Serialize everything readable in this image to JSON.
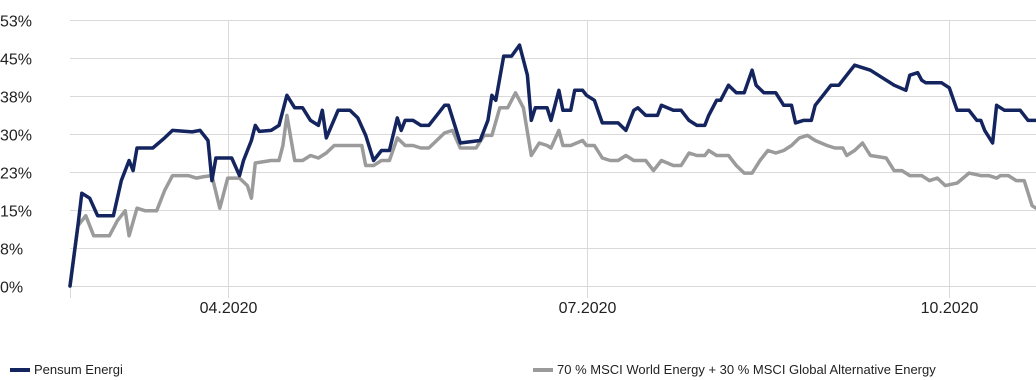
{
  "chart_data": {
    "type": "line",
    "title": "",
    "xlabel": "",
    "ylabel": "",
    "ylim": [
      0,
      53
    ],
    "y_ticks": [
      {
        "value": 0,
        "label": "0%"
      },
      {
        "value": 7.57,
        "label": "8%"
      },
      {
        "value": 15.14,
        "label": "15%"
      },
      {
        "value": 22.71,
        "label": "23%"
      },
      {
        "value": 30.28,
        "label": "30%"
      },
      {
        "value": 37.85,
        "label": "38%"
      },
      {
        "value": 45.42,
        "label": "45%"
      },
      {
        "value": 53.0,
        "label": "53%"
      }
    ],
    "x_start": "2020-02-21",
    "x_end": "2020-10-23",
    "x_ticks": [
      {
        "value": "2020-04-01",
        "label": "04.2020"
      },
      {
        "value": "2020-07-01",
        "label": "07.2020"
      },
      {
        "value": "2020-10-01",
        "label": "10.2020"
      }
    ],
    "grid": true,
    "legend_position": "bottom",
    "series": [
      {
        "name": "Pensum Energi",
        "color": "#14245f",
        "points": [
          [
            "2020-02-21",
            0
          ],
          [
            "2020-02-23",
            12
          ],
          [
            "2020-02-24",
            18.5
          ],
          [
            "2020-02-26",
            17.5
          ],
          [
            "2020-02-28",
            14
          ],
          [
            "2020-03-03",
            14
          ],
          [
            "2020-03-05",
            21
          ],
          [
            "2020-03-07",
            25
          ],
          [
            "2020-03-08",
            23
          ],
          [
            "2020-03-09",
            27.5
          ],
          [
            "2020-03-13",
            27.5
          ],
          [
            "2020-03-16",
            29.5
          ],
          [
            "2020-03-18",
            31
          ],
          [
            "2020-03-23",
            30.7
          ],
          [
            "2020-03-25",
            31
          ],
          [
            "2020-03-27",
            29
          ],
          [
            "2020-03-28",
            21
          ],
          [
            "2020-03-29",
            25.5
          ],
          [
            "2020-04-02",
            25.5
          ],
          [
            "2020-04-04",
            22
          ],
          [
            "2020-04-05",
            25
          ],
          [
            "2020-04-07",
            29
          ],
          [
            "2020-04-08",
            32
          ],
          [
            "2020-04-09",
            30.8
          ],
          [
            "2020-04-12",
            31
          ],
          [
            "2020-04-14",
            32
          ],
          [
            "2020-04-16",
            38
          ],
          [
            "2020-04-18",
            35.5
          ],
          [
            "2020-04-20",
            35.5
          ],
          [
            "2020-04-22",
            33
          ],
          [
            "2020-04-24",
            32
          ],
          [
            "2020-04-25",
            35
          ],
          [
            "2020-04-26",
            29.5
          ],
          [
            "2020-04-29",
            35
          ],
          [
            "2020-05-02",
            35
          ],
          [
            "2020-05-04",
            33.5
          ],
          [
            "2020-05-06",
            30
          ],
          [
            "2020-05-08",
            25
          ],
          [
            "2020-05-10",
            27
          ],
          [
            "2020-05-12",
            27
          ],
          [
            "2020-05-14",
            33.5
          ],
          [
            "2020-05-15",
            31
          ],
          [
            "2020-05-16",
            33
          ],
          [
            "2020-05-18",
            33
          ],
          [
            "2020-05-20",
            32
          ],
          [
            "2020-05-22",
            32
          ],
          [
            "2020-05-24",
            34
          ],
          [
            "2020-05-26",
            36
          ],
          [
            "2020-05-27",
            36
          ],
          [
            "2020-05-30",
            28.5
          ],
          [
            "2020-06-04",
            29
          ],
          [
            "2020-06-06",
            33
          ],
          [
            "2020-06-07",
            38
          ],
          [
            "2020-06-08",
            37
          ],
          [
            "2020-06-10",
            45.8
          ],
          [
            "2020-06-12",
            45.8
          ],
          [
            "2020-06-14",
            48
          ],
          [
            "2020-06-16",
            42
          ],
          [
            "2020-06-17",
            33
          ],
          [
            "2020-06-18",
            35.5
          ],
          [
            "2020-06-20",
            35.5
          ],
          [
            "2020-06-21",
            35.5
          ],
          [
            "2020-06-22",
            33
          ],
          [
            "2020-06-24",
            39
          ],
          [
            "2020-06-25",
            35
          ],
          [
            "2020-06-27",
            35
          ],
          [
            "2020-06-28",
            39
          ],
          [
            "2020-06-30",
            39
          ],
          [
            "2020-07-01",
            38
          ],
          [
            "2020-07-03",
            37
          ],
          [
            "2020-07-05",
            32.5
          ],
          [
            "2020-07-09",
            32.5
          ],
          [
            "2020-07-11",
            31
          ],
          [
            "2020-07-13",
            35
          ],
          [
            "2020-07-14",
            35.5
          ],
          [
            "2020-07-16",
            34
          ],
          [
            "2020-07-19",
            34
          ],
          [
            "2020-07-20",
            36
          ],
          [
            "2020-07-23",
            35
          ],
          [
            "2020-07-25",
            35
          ],
          [
            "2020-07-27",
            33
          ],
          [
            "2020-07-29",
            32
          ],
          [
            "2020-07-31",
            32
          ],
          [
            "2020-08-01",
            34
          ],
          [
            "2020-08-03",
            37
          ],
          [
            "2020-08-04",
            37
          ],
          [
            "2020-08-06",
            40
          ],
          [
            "2020-08-08",
            38.5
          ],
          [
            "2020-08-10",
            38.5
          ],
          [
            "2020-08-12",
            43
          ],
          [
            "2020-08-13",
            40
          ],
          [
            "2020-08-15",
            38.5
          ],
          [
            "2020-08-18",
            38.5
          ],
          [
            "2020-08-20",
            36
          ],
          [
            "2020-08-22",
            36
          ],
          [
            "2020-08-23",
            32.5
          ],
          [
            "2020-08-25",
            33
          ],
          [
            "2020-08-27",
            33
          ],
          [
            "2020-08-28",
            36
          ],
          [
            "2020-08-30",
            38
          ],
          [
            "2020-09-01",
            40
          ],
          [
            "2020-09-03",
            40
          ],
          [
            "2020-09-05",
            42
          ],
          [
            "2020-09-07",
            44
          ],
          [
            "2020-09-09",
            43.5
          ],
          [
            "2020-09-11",
            43
          ],
          [
            "2020-09-13",
            42
          ],
          [
            "2020-09-15",
            41
          ],
          [
            "2020-09-17",
            40
          ],
          [
            "2020-09-20",
            39
          ],
          [
            "2020-09-21",
            42
          ],
          [
            "2020-09-23",
            42.5
          ],
          [
            "2020-09-24",
            41
          ],
          [
            "2020-09-25",
            40.5
          ],
          [
            "2020-09-29",
            40.5
          ],
          [
            "2020-10-01",
            39.5
          ],
          [
            "2020-10-03",
            35
          ],
          [
            "2020-10-06",
            35
          ],
          [
            "2020-10-08",
            33
          ],
          [
            "2020-10-09",
            33
          ],
          [
            "2020-10-10",
            31
          ],
          [
            "2020-10-12",
            28.5
          ],
          [
            "2020-10-13",
            36
          ],
          [
            "2020-10-15",
            35
          ],
          [
            "2020-10-17",
            35
          ],
          [
            "2020-10-19",
            35
          ],
          [
            "2020-10-21",
            33
          ],
          [
            "2020-10-23",
            33
          ]
        ]
      },
      {
        "name": "70 % MSCI World Energy + 30 % MSCI Global Alternative Energy",
        "color": "#9b9b9b",
        "points": [
          [
            "2020-02-21",
            0
          ],
          [
            "2020-02-23",
            12
          ],
          [
            "2020-02-25",
            14
          ],
          [
            "2020-02-27",
            10
          ],
          [
            "2020-03-02",
            10
          ],
          [
            "2020-03-04",
            13
          ],
          [
            "2020-03-06",
            15
          ],
          [
            "2020-03-07",
            10
          ],
          [
            "2020-03-09",
            15.5
          ],
          [
            "2020-03-11",
            15
          ],
          [
            "2020-03-14",
            15
          ],
          [
            "2020-03-16",
            19
          ],
          [
            "2020-03-18",
            22
          ],
          [
            "2020-03-22",
            22
          ],
          [
            "2020-03-24",
            21.5
          ],
          [
            "2020-03-26",
            21.8
          ],
          [
            "2020-03-28",
            22
          ],
          [
            "2020-03-30",
            15.5
          ],
          [
            "2020-04-01",
            21.5
          ],
          [
            "2020-04-04",
            21.5
          ],
          [
            "2020-04-06",
            20
          ],
          [
            "2020-04-07",
            17.5
          ],
          [
            "2020-04-08",
            24.5
          ],
          [
            "2020-04-12",
            25
          ],
          [
            "2020-04-14",
            25
          ],
          [
            "2020-04-15",
            28
          ],
          [
            "2020-04-16",
            34
          ],
          [
            "2020-04-18",
            25
          ],
          [
            "2020-04-20",
            25
          ],
          [
            "2020-04-22",
            26
          ],
          [
            "2020-04-24",
            25.5
          ],
          [
            "2020-04-26",
            26.5
          ],
          [
            "2020-04-28",
            28
          ],
          [
            "2020-05-01",
            28
          ],
          [
            "2020-05-03",
            28
          ],
          [
            "2020-05-05",
            28
          ],
          [
            "2020-05-06",
            24
          ],
          [
            "2020-05-08",
            24
          ],
          [
            "2020-05-10",
            25
          ],
          [
            "2020-05-12",
            25
          ],
          [
            "2020-05-14",
            29.5
          ],
          [
            "2020-05-16",
            28
          ],
          [
            "2020-05-18",
            28
          ],
          [
            "2020-05-20",
            27.5
          ],
          [
            "2020-05-22",
            27.5
          ],
          [
            "2020-05-24",
            29
          ],
          [
            "2020-05-26",
            30.5
          ],
          [
            "2020-05-28",
            31
          ],
          [
            "2020-05-30",
            27.5
          ],
          [
            "2020-06-03",
            27.5
          ],
          [
            "2020-06-05",
            30
          ],
          [
            "2020-06-07",
            30
          ],
          [
            "2020-06-09",
            35.5
          ],
          [
            "2020-06-11",
            35.5
          ],
          [
            "2020-06-13",
            38.5
          ],
          [
            "2020-06-15",
            35.5
          ],
          [
            "2020-06-17",
            26
          ],
          [
            "2020-06-19",
            28.5
          ],
          [
            "2020-06-21",
            28
          ],
          [
            "2020-06-22",
            27.5
          ],
          [
            "2020-06-24",
            31
          ],
          [
            "2020-06-25",
            28
          ],
          [
            "2020-06-27",
            28
          ],
          [
            "2020-06-30",
            29
          ],
          [
            "2020-07-01",
            28
          ],
          [
            "2020-07-03",
            28
          ],
          [
            "2020-07-05",
            25.5
          ],
          [
            "2020-07-07",
            25
          ],
          [
            "2020-07-09",
            25
          ],
          [
            "2020-07-11",
            26
          ],
          [
            "2020-07-13",
            25
          ],
          [
            "2020-07-16",
            25
          ],
          [
            "2020-07-18",
            23
          ],
          [
            "2020-07-20",
            25
          ],
          [
            "2020-07-23",
            24
          ],
          [
            "2020-07-25",
            24
          ],
          [
            "2020-07-27",
            26.5
          ],
          [
            "2020-07-29",
            26
          ],
          [
            "2020-07-31",
            26
          ],
          [
            "2020-08-01",
            27
          ],
          [
            "2020-08-03",
            26
          ],
          [
            "2020-08-06",
            26
          ],
          [
            "2020-08-08",
            24
          ],
          [
            "2020-08-10",
            22.5
          ],
          [
            "2020-08-12",
            22.5
          ],
          [
            "2020-08-14",
            25
          ],
          [
            "2020-08-16",
            27
          ],
          [
            "2020-08-18",
            26.5
          ],
          [
            "2020-08-20",
            27
          ],
          [
            "2020-08-22",
            28
          ],
          [
            "2020-08-24",
            29.5
          ],
          [
            "2020-08-26",
            30
          ],
          [
            "2020-08-28",
            29
          ],
          [
            "2020-08-31",
            28
          ],
          [
            "2020-09-02",
            27.5
          ],
          [
            "2020-09-04",
            27.5
          ],
          [
            "2020-09-05",
            26
          ],
          [
            "2020-09-07",
            27
          ],
          [
            "2020-09-09",
            28.5
          ],
          [
            "2020-09-11",
            26
          ],
          [
            "2020-09-15",
            25.5
          ],
          [
            "2020-09-17",
            23
          ],
          [
            "2020-09-19",
            23
          ],
          [
            "2020-09-21",
            22
          ],
          [
            "2020-09-24",
            22
          ],
          [
            "2020-09-26",
            21
          ],
          [
            "2020-09-28",
            21.5
          ],
          [
            "2020-09-30",
            20
          ],
          [
            "2020-10-03",
            20.5
          ],
          [
            "2020-10-06",
            22.5
          ],
          [
            "2020-10-09",
            22
          ],
          [
            "2020-10-11",
            22
          ],
          [
            "2020-10-13",
            21.5
          ],
          [
            "2020-10-14",
            22
          ],
          [
            "2020-10-16",
            22
          ],
          [
            "2020-10-18",
            21
          ],
          [
            "2020-10-20",
            21
          ],
          [
            "2020-10-22",
            16
          ],
          [
            "2020-10-23",
            15.5
          ]
        ]
      }
    ]
  }
}
